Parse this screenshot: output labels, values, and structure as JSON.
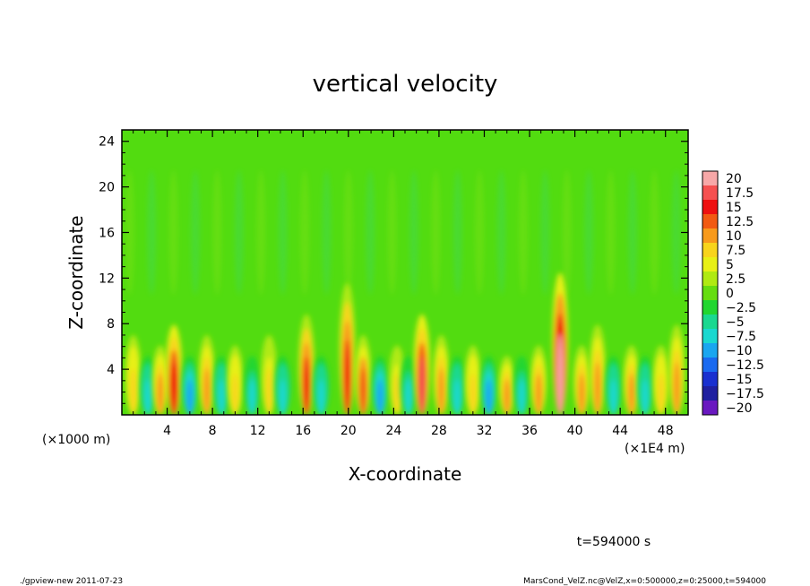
{
  "chart_data": {
    "type": "heatmap",
    "title": "vertical velocity",
    "xlabel": "X-coordinate",
    "ylabel": "Z-coordinate",
    "x_unit_left": "(×1000 m)",
    "x_unit_right": "(×1E4 m)",
    "xlim": [
      0,
      50
    ],
    "ylim": [
      0,
      25
    ],
    "x_ticks": [
      4,
      8,
      12,
      16,
      20,
      24,
      28,
      32,
      36,
      40,
      44,
      48
    ],
    "y_ticks": [
      4,
      8,
      12,
      16,
      20,
      24
    ],
    "colorbar": {
      "levels": [
        "20",
        "17.5",
        "15",
        "12.5",
        "10",
        "7.5",
        "5",
        "2.5",
        "0",
        "−2.5",
        "−5",
        "−7.5",
        "−10",
        "−12.5",
        "−15",
        "−17.5",
        "−20"
      ],
      "colors": [
        "#f7a8a8",
        "#f55050",
        "#ee1010",
        "#f25a12",
        "#f89a1c",
        "#f8d41c",
        "#e8f015",
        "#b0ea12",
        "#66dd10",
        "#22d630",
        "#1ad890",
        "#1ad8d0",
        "#1aa6f0",
        "#1a6af0",
        "#1a30d0",
        "#2020a0",
        "#6a18c0"
      ]
    },
    "features": [
      {
        "x": 1.0,
        "zmax": 7,
        "amp": 8
      },
      {
        "x": 2.3,
        "zmax": 5,
        "amp": -8
      },
      {
        "x": 3.4,
        "zmax": 6,
        "amp": 9
      },
      {
        "x": 4.6,
        "zmax": 8,
        "amp": 16
      },
      {
        "x": 6.0,
        "zmax": 5,
        "amp": -9
      },
      {
        "x": 7.5,
        "zmax": 7,
        "amp": 10
      },
      {
        "x": 8.8,
        "zmax": 5,
        "amp": -8
      },
      {
        "x": 10.0,
        "zmax": 6,
        "amp": 8
      },
      {
        "x": 11.5,
        "zmax": 5,
        "amp": -7
      },
      {
        "x": 13.0,
        "zmax": 7,
        "amp": 7
      },
      {
        "x": 14.2,
        "zmax": 5,
        "amp": -8
      },
      {
        "x": 16.3,
        "zmax": 9,
        "amp": 14
      },
      {
        "x": 17.6,
        "zmax": 5,
        "amp": -8
      },
      {
        "x": 19.9,
        "zmax": 12,
        "amp": 14
      },
      {
        "x": 21.3,
        "zmax": 7,
        "amp": 12
      },
      {
        "x": 22.8,
        "zmax": 5,
        "amp": -9
      },
      {
        "x": 24.3,
        "zmax": 6,
        "amp": 7
      },
      {
        "x": 25.3,
        "zmax": 5,
        "amp": -7
      },
      {
        "x": 26.5,
        "zmax": 9,
        "amp": 17
      },
      {
        "x": 28.2,
        "zmax": 7,
        "amp": 11
      },
      {
        "x": 29.6,
        "zmax": 5,
        "amp": -8
      },
      {
        "x": 31.0,
        "zmax": 6,
        "amp": 8
      },
      {
        "x": 32.4,
        "zmax": 5,
        "amp": -9
      },
      {
        "x": 34.0,
        "zmax": 5,
        "amp": 9
      },
      {
        "x": 35.3,
        "zmax": 5,
        "amp": -7
      },
      {
        "x": 36.8,
        "zmax": 6,
        "amp": 9
      },
      {
        "x": 38.7,
        "zmax": 13,
        "amp": 19
      },
      {
        "x": 40.6,
        "zmax": 6,
        "amp": 11
      },
      {
        "x": 42.0,
        "zmax": 8,
        "amp": 10
      },
      {
        "x": 43.4,
        "zmax": 5,
        "amp": -8
      },
      {
        "x": 45.0,
        "zmax": 6,
        "amp": 9
      },
      {
        "x": 46.2,
        "zmax": 5,
        "amp": -8
      },
      {
        "x": 47.6,
        "zmax": 6,
        "amp": 8
      },
      {
        "x": 49.0,
        "zmax": 8,
        "amp": 10
      }
    ],
    "grid": false
  },
  "time_label": "t=594000 s",
  "footer_left": "./gpview-new   2011-07-23",
  "footer_right": "MarsCond_VelZ.nc@VelZ,x=0:500000,z=0:25000,t=594000"
}
